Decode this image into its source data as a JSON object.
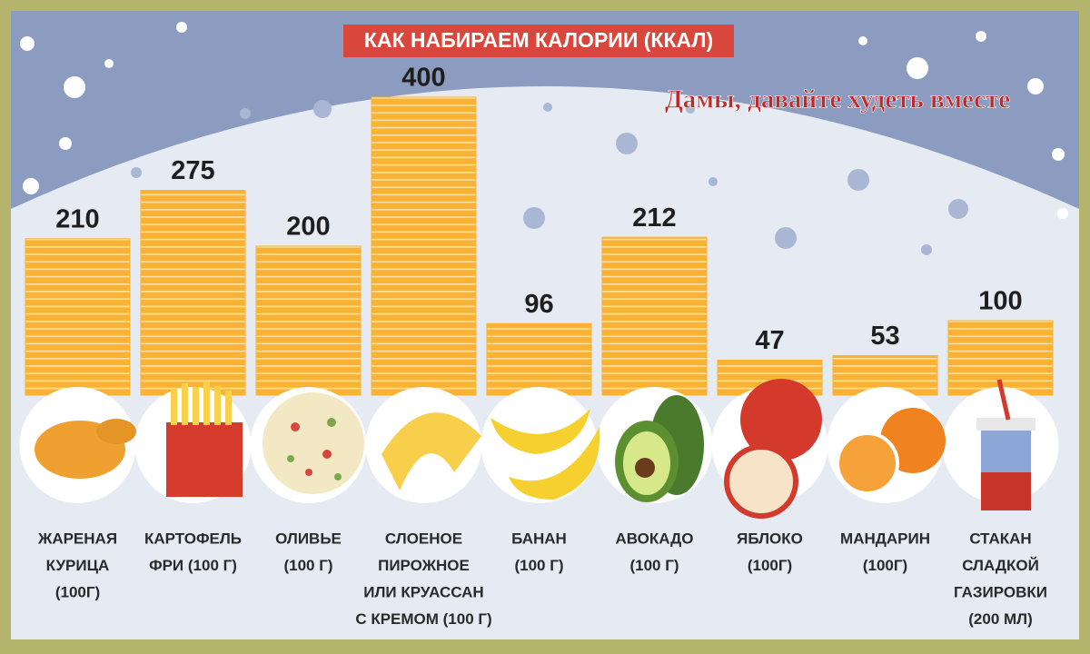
{
  "chart_data": {
    "type": "bar",
    "title": "КАК НАБИРАЕМ КАЛОРИИ (ККАЛ)",
    "watermark": "Дамы, давайте худеть вместе",
    "categories": [
      [
        "ЖАРЕНАЯ",
        "КУРИЦА",
        "(100Г)"
      ],
      [
        "КАРТОФЕЛЬ",
        "ФРИ (100 Г)"
      ],
      [
        "ОЛИВЬЕ",
        "(100 Г)"
      ],
      [
        "СЛОЕНОЕ",
        "ПИРОЖНОЕ",
        "ИЛИ КРУАССАН",
        "С КРЕМОМ (100 Г)"
      ],
      [
        "БАНАН",
        "(100 Г)"
      ],
      [
        "АВОКАДО",
        "(100 Г)"
      ],
      [
        "ЯБЛОКО",
        "(100Г)"
      ],
      [
        "МАНДАРИН",
        "(100Г)"
      ],
      [
        "СТАКАН",
        "СЛАДКОЙ",
        "ГАЗИРОВКИ",
        "(200 МЛ)"
      ]
    ],
    "values": [
      210,
      275,
      200,
      400,
      96,
      212,
      47,
      53,
      100
    ],
    "color": "#f9b233",
    "ylim": [
      0,
      400
    ]
  }
}
